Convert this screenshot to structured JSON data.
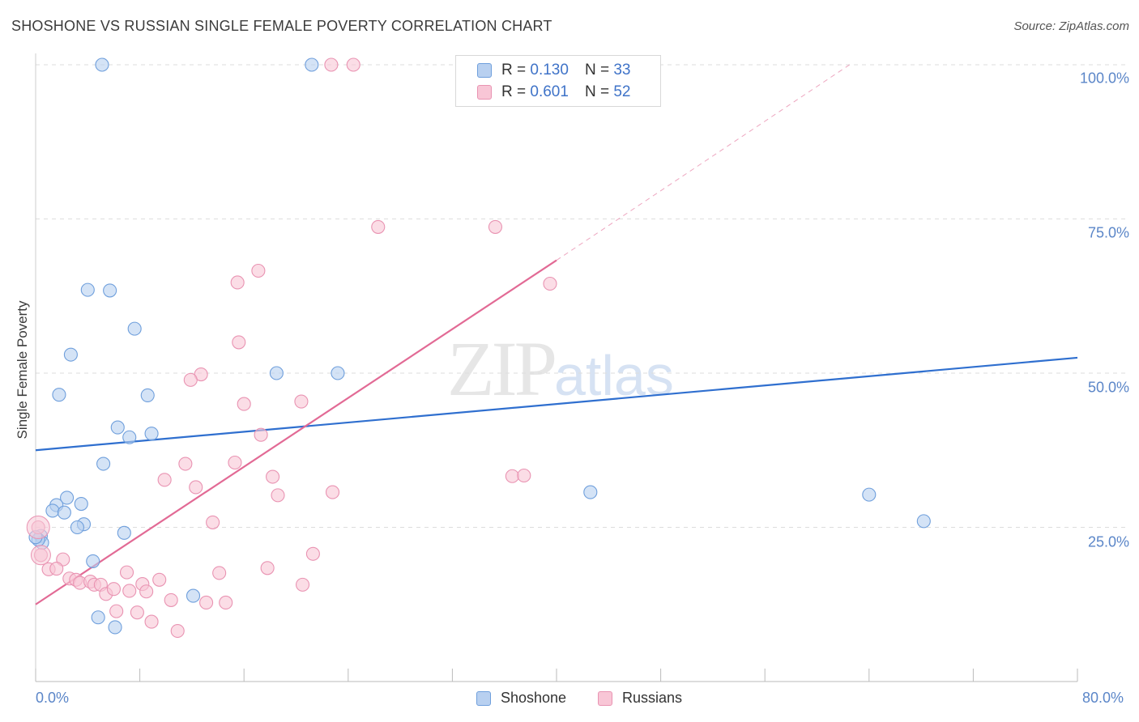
{
  "header": {
    "title": "SHOSHONE VS RUSSIAN SINGLE FEMALE POVERTY CORRELATION CHART",
    "source": "Source: ZipAtlas.com"
  },
  "watermark": {
    "zip": "ZIP",
    "atlas": "atlas"
  },
  "legend": {
    "shoshone": {
      "r_label": "R = ",
      "r": "0.130",
      "n_label": "N = ",
      "n": "33",
      "name": "Shoshone"
    },
    "russians": {
      "r_label": "R = ",
      "r": "0.601",
      "n_label": "N = ",
      "n": "52",
      "name": "Russians"
    }
  },
  "colors": {
    "blue_fill": "#b8d0f0",
    "blue_stroke": "#6f9fdc",
    "blue_line": "#2f6fcf",
    "pink_fill": "#f8c6d6",
    "pink_stroke": "#e993b2",
    "pink_line": "#e26a95",
    "grid": "#dddddd",
    "tick_text": "#5b86c8"
  },
  "chart_data": {
    "type": "scatter",
    "title": "SHOSHONE VS RUSSIAN SINGLE FEMALE POVERTY CORRELATION CHART",
    "xlabel": "",
    "ylabel": "Single Female Poverty",
    "xlim": [
      0,
      80
    ],
    "ylim": [
      0,
      100
    ],
    "x_tick_labels": [
      "0.0%",
      "80.0%"
    ],
    "y_ticks": [
      25,
      50,
      75,
      100
    ],
    "y_tick_labels": [
      "25.0%",
      "50.0%",
      "75.0%",
      "100.0%"
    ],
    "series": [
      {
        "name": "Shoshone",
        "color": "#6f9fdc",
        "points": [
          [
            5.1,
            100
          ],
          [
            21.2,
            100
          ],
          [
            4.0,
            63.5
          ],
          [
            5.7,
            63.4
          ],
          [
            7.6,
            57.2
          ],
          [
            2.7,
            53.0
          ],
          [
            1.8,
            46.5
          ],
          [
            8.6,
            46.4
          ],
          [
            18.5,
            50.0
          ],
          [
            23.2,
            50.0
          ],
          [
            6.3,
            41.2
          ],
          [
            7.2,
            39.6
          ],
          [
            8.9,
            40.2
          ],
          [
            5.2,
            35.3
          ],
          [
            0.4,
            23.6
          ],
          [
            0.5,
            22.5
          ],
          [
            2.4,
            29.8
          ],
          [
            1.6,
            28.6
          ],
          [
            1.3,
            27.7
          ],
          [
            3.5,
            28.8
          ],
          [
            2.2,
            27.4
          ],
          [
            3.7,
            25.5
          ],
          [
            3.2,
            25.0
          ],
          [
            6.8,
            24.1
          ],
          [
            4.4,
            19.5
          ],
          [
            12.1,
            13.9
          ],
          [
            4.8,
            10.4
          ],
          [
            6.1,
            8.8
          ],
          [
            42.6,
            30.7
          ],
          [
            64.0,
            30.3
          ],
          [
            68.2,
            26.0
          ],
          [
            0.2,
            23.0
          ],
          [
            0.0,
            23.4
          ]
        ],
        "trend": {
          "x": [
            0,
            80
          ],
          "y": [
            37.5,
            52.5
          ]
        }
      },
      {
        "name": "Russians",
        "color": "#e993b2",
        "points": [
          [
            22.7,
            100
          ],
          [
            24.4,
            100
          ],
          [
            26.3,
            73.7
          ],
          [
            35.3,
            73.7
          ],
          [
            17.1,
            66.6
          ],
          [
            15.5,
            64.7
          ],
          [
            39.5,
            64.5
          ],
          [
            15.6,
            55.0
          ],
          [
            12.7,
            49.8
          ],
          [
            11.9,
            48.9
          ],
          [
            16.0,
            45.0
          ],
          [
            20.4,
            45.4
          ],
          [
            17.3,
            40.0
          ],
          [
            11.5,
            35.3
          ],
          [
            15.3,
            35.5
          ],
          [
            9.9,
            32.7
          ],
          [
            12.3,
            31.5
          ],
          [
            18.2,
            33.2
          ],
          [
            18.6,
            30.2
          ],
          [
            22.8,
            30.7
          ],
          [
            36.6,
            33.3
          ],
          [
            37.5,
            33.4
          ],
          [
            13.6,
            25.8
          ],
          [
            0.2,
            25.0
          ],
          [
            0.4,
            20.5
          ],
          [
            2.1,
            19.8
          ],
          [
            1.0,
            18.2
          ],
          [
            1.6,
            18.3
          ],
          [
            7.0,
            17.7
          ],
          [
            14.1,
            17.6
          ],
          [
            17.8,
            18.4
          ],
          [
            21.3,
            20.7
          ],
          [
            2.6,
            16.7
          ],
          [
            3.1,
            16.5
          ],
          [
            3.4,
            16.0
          ],
          [
            4.2,
            16.2
          ],
          [
            4.5,
            15.7
          ],
          [
            5.0,
            15.7
          ],
          [
            5.4,
            14.2
          ],
          [
            6.0,
            15.0
          ],
          [
            7.2,
            14.7
          ],
          [
            8.2,
            15.8
          ],
          [
            8.5,
            14.6
          ],
          [
            9.5,
            16.5
          ],
          [
            10.4,
            13.2
          ],
          [
            13.1,
            12.8
          ],
          [
            14.6,
            12.8
          ],
          [
            20.5,
            15.7
          ],
          [
            6.2,
            11.4
          ],
          [
            7.8,
            11.2
          ],
          [
            8.9,
            9.7
          ],
          [
            10.9,
            8.2
          ]
        ],
        "trend": {
          "x": [
            0,
            40
          ],
          "y": [
            12.5,
            68.3
          ]
        },
        "trend_extension": {
          "x": [
            40,
            62.5
          ],
          "y": [
            68.3,
            100
          ]
        }
      }
    ]
  }
}
